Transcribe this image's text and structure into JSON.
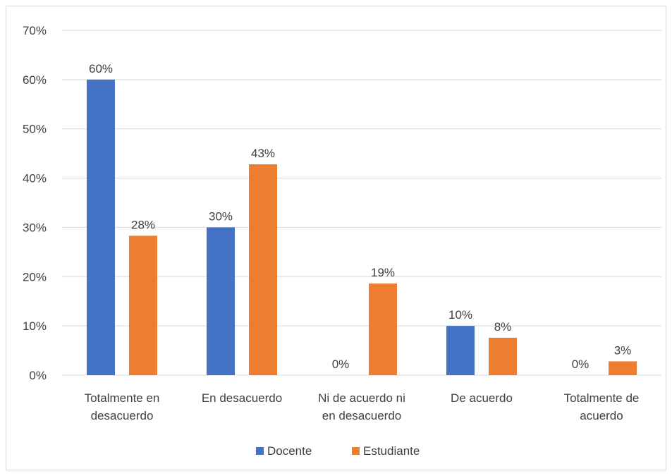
{
  "chart_data": {
    "type": "bar",
    "title": "",
    "xlabel": "",
    "ylabel": "",
    "ylim": [
      0,
      70
    ],
    "yticks": [
      0,
      10,
      20,
      30,
      40,
      50,
      60,
      70
    ],
    "ytick_labels": [
      "0%",
      "10%",
      "20%",
      "30%",
      "40%",
      "50%",
      "60%",
      "70%"
    ],
    "categories": [
      [
        "Totalmente en",
        "desacuerdo"
      ],
      [
        "En desacuerdo"
      ],
      [
        "Ni de acuerdo ni",
        "en desacuerdo"
      ],
      [
        "De acuerdo"
      ],
      [
        "Totalmente de",
        "acuerdo"
      ]
    ],
    "series": [
      {
        "name": "Docente",
        "color": "#4472c4",
        "values": [
          60,
          30,
          0,
          10,
          0
        ],
        "labels": [
          "60%",
          "30%",
          "0%",
          "10%",
          "0%"
        ]
      },
      {
        "name": "Estudiante",
        "color": "#ed7d31",
        "values": [
          28.3,
          42.8,
          18.6,
          7.6,
          2.8
        ],
        "labels": [
          "28%",
          "43%",
          "19%",
          "8%",
          "3%"
        ]
      }
    ],
    "grid": true,
    "legend_position": "bottom"
  }
}
